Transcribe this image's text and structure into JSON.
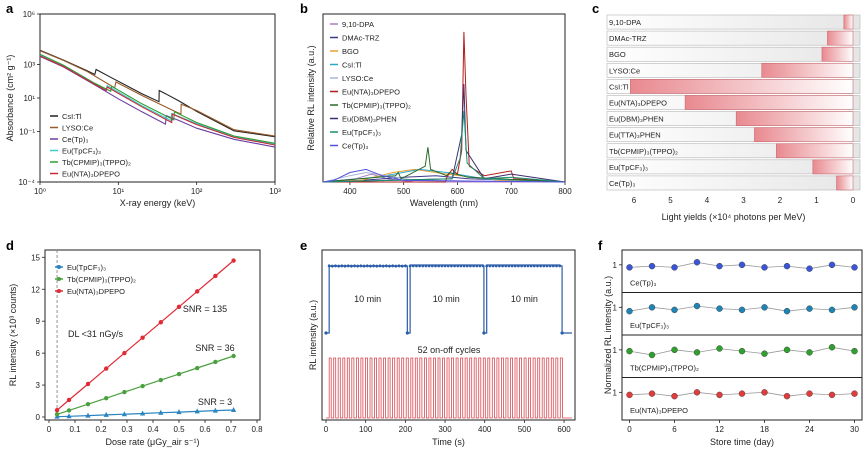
{
  "chart_data": [
    {
      "panel": "a",
      "type": "line",
      "xlabel": "X-ray energy (keV)",
      "ylabel": "Absorbance (cm² g⁻¹)",
      "xscale": "log",
      "yscale": "log",
      "xlim": [
        1,
        1000
      ],
      "ylim": [
        0.0001,
        1000000
      ],
      "xticks": [
        "10⁰",
        "10¹",
        "10²",
        "10³"
      ],
      "yticks": [
        "10⁻⁴",
        "10⁻¹",
        "10¹",
        "10³",
        "10⁶"
      ],
      "series": [
        {
          "name": "CsI:Tl",
          "color": "#222222",
          "values": [
            [
              1,
              7000
            ],
            [
              2,
              1800
            ],
            [
              4,
              420
            ],
            [
              5,
              250
            ],
            [
              5.2,
              500
            ],
            [
              8,
              170
            ],
            [
              20,
              18
            ],
            [
              33,
              6
            ],
            [
              33.2,
              28
            ],
            [
              40,
              18
            ],
            [
              60,
              6.5
            ],
            [
              100,
              1.6
            ],
            [
              300,
              0.11
            ],
            [
              1000,
              0.05
            ]
          ]
        },
        {
          "name": "LYSO:Ce",
          "color": "#9a5a2a",
          "values": [
            [
              1,
              6500
            ],
            [
              2,
              1700
            ],
            [
              4,
              380
            ],
            [
              9,
              40
            ],
            [
              9.3,
              90
            ],
            [
              20,
              14
            ],
            [
              50,
              1.8
            ],
            [
              63,
              1.1
            ],
            [
              63.5,
              4.2
            ],
            [
              100,
              1.8
            ],
            [
              300,
              0.13
            ],
            [
              1000,
              0.055
            ]
          ]
        },
        {
          "name": "Ce(Tp)₃",
          "color": "#6b3fa0",
          "values": [
            [
              1,
              3000
            ],
            [
              2,
              700
            ],
            [
              5,
              60
            ],
            [
              10,
              9
            ],
            [
              20,
              1.5
            ],
            [
              40,
              0.28
            ],
            [
              41,
              0.9
            ],
            [
              60,
              0.45
            ],
            [
              100,
              0.16
            ],
            [
              300,
              0.035
            ],
            [
              1000,
              0.012
            ]
          ]
        },
        {
          "name": "Eu(TpCF₃)₃",
          "color": "#3ec9c9",
          "values": [
            [
              1,
              3500
            ],
            [
              2,
              800
            ],
            [
              5,
              70
            ],
            [
              7,
              32
            ],
            [
              7.2,
              55
            ],
            [
              20,
              3.5
            ],
            [
              47,
              0.45
            ],
            [
              48,
              1.2
            ],
            [
              100,
              0.3
            ],
            [
              300,
              0.05
            ],
            [
              1000,
              0.018
            ]
          ]
        },
        {
          "name": "Tb(CPMIP)₃(TPPO)₂",
          "color": "#2e9e35",
          "values": [
            [
              1,
              4000
            ],
            [
              2,
              900
            ],
            [
              5,
              75
            ],
            [
              8,
              25
            ],
            [
              8.2,
              50
            ],
            [
              20,
              4.5
            ],
            [
              51,
              0.5
            ],
            [
              52,
              1.5
            ],
            [
              100,
              0.35
            ],
            [
              300,
              0.055
            ],
            [
              1000,
              0.02
            ]
          ]
        },
        {
          "name": "Eu(NTA)₃DPEPO",
          "color": "#c8283a",
          "values": [
            [
              1,
              3200
            ],
            [
              2,
              750
            ],
            [
              5,
              65
            ],
            [
              7,
              28
            ],
            [
              7.2,
              45
            ],
            [
              20,
              3
            ],
            [
              48,
              0.35
            ],
            [
              49,
              1.1
            ],
            [
              100,
              0.26
            ],
            [
              300,
              0.045
            ],
            [
              1000,
              0.016
            ]
          ]
        }
      ]
    },
    {
      "panel": "b",
      "type": "line",
      "xlabel": "Wavelength (nm)",
      "ylabel": "Relative RL intensity (a.u.)",
      "xlim": [
        350,
        800
      ],
      "xticks": [
        "400",
        "500",
        "600",
        "700",
        "800"
      ],
      "series": [
        {
          "name": "9,10-DPA",
          "color": "#b07cc6",
          "values": [
            [
              350,
              0
            ],
            [
              410,
              0.02
            ],
            [
              440,
              0.05
            ],
            [
              470,
              0.02
            ],
            [
              520,
              0
            ],
            [
              800,
              0
            ]
          ]
        },
        {
          "name": "DMAc-TRZ",
          "color": "#3b3a8a",
          "values": [
            [
              350,
              0
            ],
            [
              420,
              0.01
            ],
            [
              500,
              0.03
            ],
            [
              560,
              0.04
            ],
            [
              620,
              0.02
            ],
            [
              800,
              0
            ]
          ]
        },
        {
          "name": "BGO",
          "color": "#e8a030",
          "values": [
            [
              350,
              0
            ],
            [
              420,
              0.01
            ],
            [
              480,
              0.06
            ],
            [
              520,
              0.08
            ],
            [
              580,
              0.05
            ],
            [
              680,
              0.01
            ],
            [
              800,
              0
            ]
          ]
        },
        {
          "name": "CsI:Tl",
          "color": "#2ba7c7",
          "values": [
            [
              350,
              0
            ],
            [
              450,
              0.03
            ],
            [
              530,
              0.08
            ],
            [
              580,
              0.06
            ],
            [
              650,
              0.02
            ],
            [
              800,
              0
            ]
          ]
        },
        {
          "name": "LYSO:Ce",
          "color": "#a7b6d8",
          "values": [
            [
              350,
              0
            ],
            [
              400,
              0.04
            ],
            [
              430,
              0.06
            ],
            [
              470,
              0.04
            ],
            [
              520,
              0.01
            ],
            [
              800,
              0
            ]
          ]
        },
        {
          "name": "Eu(NTA)₃DPEPO",
          "color": "#b11c1c",
          "values": [
            [
              350,
              0
            ],
            [
              578,
              0
            ],
            [
              580,
              0.03
            ],
            [
              590,
              0.08
            ],
            [
              600,
              0.05
            ],
            [
              608,
              0.2
            ],
            [
              612,
              0.95
            ],
            [
              616,
              0.55
            ],
            [
              622,
              0.1
            ],
            [
              650,
              0.04
            ],
            [
              700,
              0.07
            ],
            [
              705,
              0.02
            ],
            [
              800,
              0
            ]
          ]
        },
        {
          "name": "Tb(CPMIP)₃(TPPO)₂",
          "color": "#2a6a2a",
          "values": [
            [
              350,
              0
            ],
            [
              485,
              0.04
            ],
            [
              490,
              0.06
            ],
            [
              495,
              0.02
            ],
            [
              540,
              0.1
            ],
            [
              545,
              0.22
            ],
            [
              550,
              0.08
            ],
            [
              580,
              0.04
            ],
            [
              585,
              0.06
            ],
            [
              620,
              0.03
            ],
            [
              800,
              0
            ]
          ]
        },
        {
          "name": "Eu(DBM)₃PHEN",
          "color": "#3e2f6f",
          "values": [
            [
              350,
              0
            ],
            [
              590,
              0.02
            ],
            [
              608,
              0.3
            ],
            [
              612,
              0.62
            ],
            [
              616,
              0.2
            ],
            [
              650,
              0.02
            ],
            [
              700,
              0.05
            ],
            [
              800,
              0
            ]
          ]
        },
        {
          "name": "Eu(TpCF₃)₃",
          "color": "#1a8f6f",
          "values": [
            [
              350,
              0
            ],
            [
              590,
              0.02
            ],
            [
              605,
              0.15
            ],
            [
              612,
              0.45
            ],
            [
              618,
              0.12
            ],
            [
              650,
              0.02
            ],
            [
              700,
              0.03
            ],
            [
              800,
              0
            ]
          ]
        },
        {
          "name": "Ce(Tp)₃",
          "color": "#5050e0",
          "values": [
            [
              350,
              0
            ],
            [
              370,
              0.01
            ],
            [
              400,
              0.06
            ],
            [
              430,
              0.08
            ],
            [
              460,
              0.04
            ],
            [
              500,
              0.01
            ],
            [
              800,
              0
            ]
          ]
        }
      ]
    },
    {
      "panel": "c",
      "type": "bar",
      "orientation": "horizontal",
      "xlabel": "Light yields (×10⁴ photons per MeV)",
      "xlim": [
        6,
        0
      ],
      "xticks": [
        "6",
        "5",
        "4",
        "3",
        "2",
        "1",
        "0"
      ],
      "categories": [
        "9,10-DPA",
        "DMAc-TRZ",
        "BGO",
        "LYSO:Ce",
        "CsI:Tl",
        "Eu(NTA)₃DPEPO",
        "Eu(DBM)₃PHEN",
        "Eu(TTA)₃PHEN",
        "Tb(CPMIP)₃(TPPO)₂",
        "Eu(TpCF₃)₃",
        "Ce(Tp)₃"
      ],
      "values": [
        0.25,
        0.7,
        0.85,
        2.5,
        6.1,
        4.6,
        3.2,
        2.7,
        2.1,
        1.1,
        0.45
      ]
    },
    {
      "panel": "d",
      "type": "scatter",
      "xlabel": "Dose rate (μGy_air s⁻¹)",
      "ylabel": "RL intensity (×10³ counts)",
      "xlim": [
        0,
        0.8
      ],
      "ylim": [
        0,
        15.5
      ],
      "xticks": [
        "0",
        "0.1",
        "0.2",
        "0.3",
        "0.4",
        "0.5",
        "0.6",
        "0.7",
        "0.8"
      ],
      "yticks": [
        "0",
        "3",
        "6",
        "9",
        "12",
        "15"
      ],
      "annotation": "DL <31 nGy/s",
      "dl_x": 0.031,
      "x": [
        0.031,
        0.077,
        0.15,
        0.22,
        0.29,
        0.36,
        0.43,
        0.5,
        0.57,
        0.64,
        0.71
      ],
      "series": [
        {
          "name": "Eu(TpCF₃)₃",
          "color": "#2a84c0",
          "snr": "SNR = 3",
          "values": [
            0.03,
            0.07,
            0.13,
            0.2,
            0.26,
            0.33,
            0.4,
            0.46,
            0.53,
            0.6,
            0.66
          ]
        },
        {
          "name": "Tb(CPMIP)₃(TPPO)₂",
          "color": "#4aa03e",
          "snr": "SNR = 36",
          "values": [
            0.25,
            0.62,
            1.2,
            1.77,
            2.34,
            2.9,
            3.47,
            4.03,
            4.6,
            5.17,
            5.73
          ]
        },
        {
          "name": "Eu(NTA)₃DPEPO",
          "color": "#e02a36",
          "snr": "SNR = 135",
          "values": [
            0.64,
            1.6,
            3.1,
            4.55,
            6.0,
            7.45,
            8.9,
            10.35,
            11.8,
            13.25,
            14.7
          ]
        }
      ]
    },
    {
      "panel": "e",
      "type": "line",
      "xlabel": "Time (s)",
      "ylabel": "RL intensity (a.u.)",
      "xlim": [
        0,
        620
      ],
      "xticks": [
        "0",
        "100",
        "200",
        "300",
        "400",
        "500",
        "600"
      ],
      "labels": [
        "10 min",
        "10 min",
        "10 min",
        "52 on-off cycles"
      ],
      "cycles": 52,
      "on_intervals": [
        [
          8,
          205
        ],
        [
          212,
          398
        ],
        [
          405,
          595
        ]
      ]
    },
    {
      "panel": "f",
      "type": "scatter",
      "xlabel": "Store time (day)",
      "ylabel": "Normalized RL intensity (a.u.)",
      "xlim": [
        -1,
        31
      ],
      "xticks": [
        "0",
        "6",
        "12",
        "18",
        "24",
        "30"
      ],
      "ytick": "1",
      "x": [
        0,
        3,
        6,
        9,
        12,
        15,
        18,
        21,
        24,
        27,
        30
      ],
      "series": [
        {
          "name": "Ce(Tp)₃",
          "color": "#3a55d8",
          "values": [
            0.98,
            0.99,
            0.98,
            1.02,
            0.99,
            1.0,
            0.98,
            0.99,
            0.97,
            1.0,
            0.98
          ]
        },
        {
          "name": "Eu(TpCF₃)₃",
          "color": "#1d84b5",
          "values": [
            0.97,
            1.0,
            0.98,
            1.01,
            0.99,
            0.98,
            1.0,
            0.97,
            0.99,
            0.98,
            1.0
          ]
        },
        {
          "name": "Tb(CPMIP)₃(TPPO)₂",
          "color": "#2ea02e",
          "values": [
            0.99,
            0.96,
            1.0,
            0.98,
            1.01,
            0.99,
            0.97,
            1.0,
            0.98,
            1.02,
            0.99
          ]
        },
        {
          "name": "Eu(NTA)₃DPEPO",
          "color": "#e03c3c",
          "values": [
            0.98,
            0.99,
            0.97,
            1.0,
            0.98,
            0.99,
            1.0,
            0.97,
            0.99,
            0.98,
            0.99
          ]
        }
      ]
    }
  ]
}
